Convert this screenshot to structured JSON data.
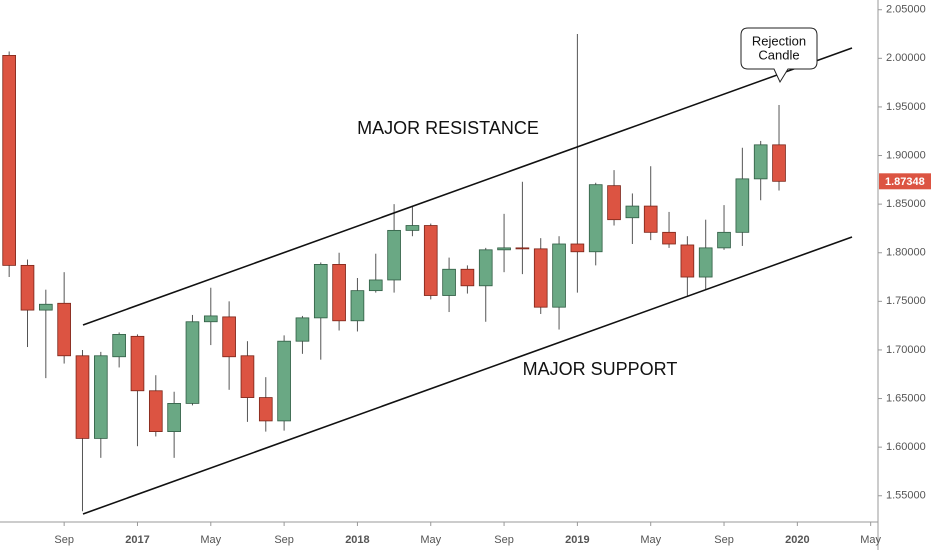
{
  "chart_data": {
    "type": "candlestick",
    "open": [
      2.003,
      1.787,
      1.741,
      1.748,
      1.694,
      1.609,
      1.693,
      1.714,
      1.658,
      1.616,
      1.645,
      1.729,
      1.734,
      1.694,
      1.651,
      1.627,
      1.709,
      1.733,
      1.788,
      1.73,
      1.761,
      1.772,
      1.823,
      1.828,
      1.756,
      1.783,
      1.766,
      1.803,
      1.805,
      1.804,
      1.744,
      1.809,
      1.801,
      1.869,
      1.836,
      1.848,
      1.821,
      1.808,
      1.775,
      1.805,
      1.821,
      1.876,
      1.911
    ],
    "high": [
      2.007,
      1.793,
      1.762,
      1.78,
      1.7,
      1.698,
      1.718,
      1.716,
      1.674,
      1.657,
      1.736,
      1.764,
      1.75,
      1.709,
      1.672,
      1.715,
      1.735,
      1.79,
      1.8,
      1.774,
      1.799,
      1.85,
      1.848,
      1.83,
      1.795,
      1.787,
      1.805,
      1.84,
      1.873,
      1.815,
      1.817,
      2.025,
      1.872,
      1.885,
      1.861,
      1.889,
      1.842,
      1.817,
      1.834,
      1.849,
      1.908,
      1.915,
      1.952
    ],
    "low": [
      1.775,
      1.703,
      1.671,
      1.686,
      1.534,
      1.589,
      1.682,
      1.601,
      1.611,
      1.589,
      1.643,
      1.705,
      1.659,
      1.626,
      1.616,
      1.617,
      1.696,
      1.69,
      1.72,
      1.719,
      1.759,
      1.759,
      1.817,
      1.752,
      1.739,
      1.758,
      1.729,
      1.78,
      1.778,
      1.737,
      1.721,
      1.759,
      1.787,
      1.828,
      1.809,
      1.813,
      1.805,
      1.756,
      1.762,
      1.803,
      1.807,
      1.854,
      1.864
    ],
    "close": [
      1.787,
      1.741,
      1.747,
      1.694,
      1.609,
      1.694,
      1.716,
      1.658,
      1.616,
      1.645,
      1.729,
      1.735,
      1.693,
      1.651,
      1.627,
      1.709,
      1.733,
      1.788,
      1.73,
      1.761,
      1.772,
      1.823,
      1.828,
      1.756,
      1.783,
      1.766,
      1.803,
      1.805,
      1.804,
      1.744,
      1.809,
      1.801,
      1.87,
      1.834,
      1.848,
      1.821,
      1.809,
      1.775,
      1.805,
      1.821,
      1.876,
      1.911,
      1.87348
    ],
    "up_color": "#6aa884",
    "down_color": "#dc5442",
    "ylim": [
      1.523,
      2.06
    ],
    "yticks": [
      {
        "value": 1.55,
        "label": "1.55000"
      },
      {
        "value": 1.6,
        "label": "1.60000"
      },
      {
        "value": 1.65,
        "label": "1.65000"
      },
      {
        "value": 1.7,
        "label": "1.70000"
      },
      {
        "value": 1.75,
        "label": "1.75000"
      },
      {
        "value": 1.8,
        "label": "1.80000"
      },
      {
        "value": 1.85,
        "label": "1.85000"
      },
      {
        "value": 1.9,
        "label": "1.90000"
      },
      {
        "value": 1.95,
        "label": "1.95000"
      },
      {
        "value": 2.0,
        "label": "2.00000"
      },
      {
        "value": 2.05,
        "label": "2.05000"
      }
    ],
    "xlim": [
      -0.5,
      47.4
    ],
    "xticks": [
      {
        "value": 3,
        "label": "Sep"
      },
      {
        "value": 7,
        "label": "2017"
      },
      {
        "value": 11,
        "label": "May"
      },
      {
        "value": 15,
        "label": "Sep"
      },
      {
        "value": 19,
        "label": "2018"
      },
      {
        "value": 23,
        "label": "May"
      },
      {
        "value": 27,
        "label": "Sep"
      },
      {
        "value": 31,
        "label": "2019"
      },
      {
        "value": 35,
        "label": "May"
      },
      {
        "value": 39,
        "label": "Sep"
      },
      {
        "value": 43,
        "label": "2020"
      },
      {
        "value": 47,
        "label": "May"
      }
    ],
    "annotations": {
      "resistance": "MAJOR RESISTANCE",
      "support": "MAJOR SUPPORT",
      "callout": [
        "Rejection",
        "Candle"
      ]
    }
  }
}
